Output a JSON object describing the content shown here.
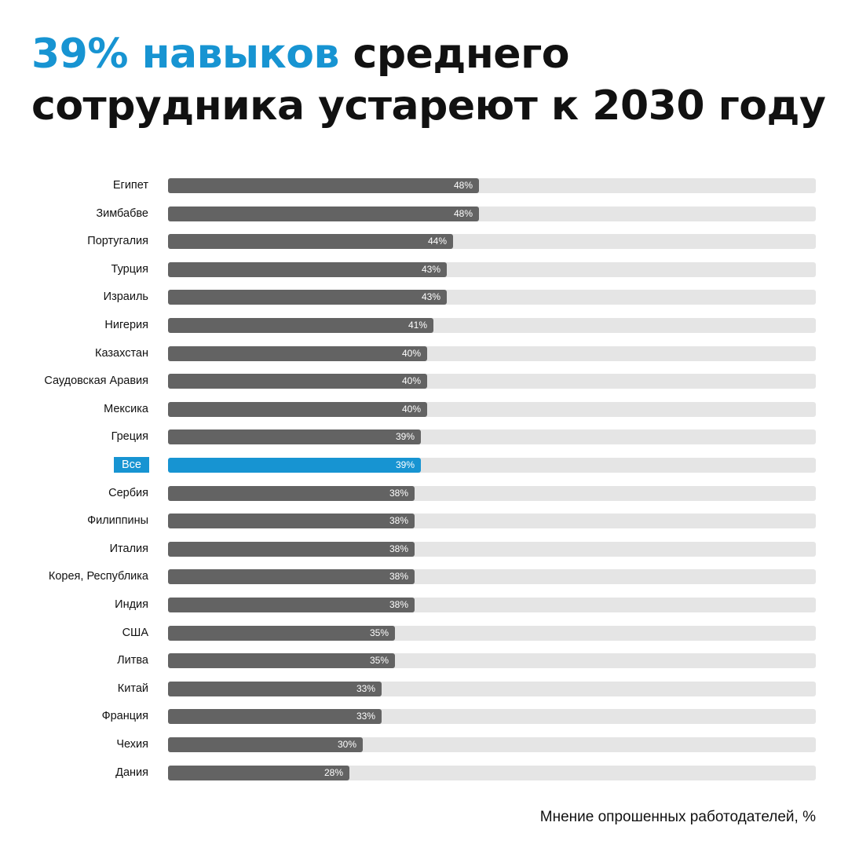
{
  "title": {
    "accent": "39% навыков",
    "rest": " среднего сотрудника устареют  к 2030 году"
  },
  "footnote": "Мнение опрошенных работодателей, %",
  "colors": {
    "accent": "#1794d2",
    "bar": "#636363",
    "track": "#e5e5e5"
  },
  "chart_data": {
    "type": "bar",
    "orientation": "horizontal",
    "categories": [
      "Египет",
      "Зимбабве",
      "Португалия",
      "Турция",
      "Израиль",
      "Нигерия",
      "Казахстан",
      "Саудовская Аравия",
      "Мексика",
      "Греция",
      "Все",
      "Сербия",
      "Филиппины",
      "Италия",
      "Корея, Республика",
      "Индия",
      "США",
      "Литва",
      "Китай",
      "Франция",
      "Чехия",
      "Дания"
    ],
    "values": [
      48,
      48,
      44,
      43,
      43,
      41,
      40,
      40,
      40,
      39,
      39,
      38,
      38,
      38,
      38,
      38,
      35,
      35,
      33,
      33,
      30,
      28
    ],
    "value_labels": [
      "48%",
      "48%",
      "44%",
      "43%",
      "43%",
      "41%",
      "40%",
      "40%",
      "40%",
      "39%",
      "39%",
      "38%",
      "38%",
      "38%",
      "38%",
      "38%",
      "35%",
      "35%",
      "33%",
      "33%",
      "30%",
      "28%"
    ],
    "highlight": "Все",
    "xlim": [
      0,
      100
    ],
    "grid": false,
    "legend": "none"
  }
}
